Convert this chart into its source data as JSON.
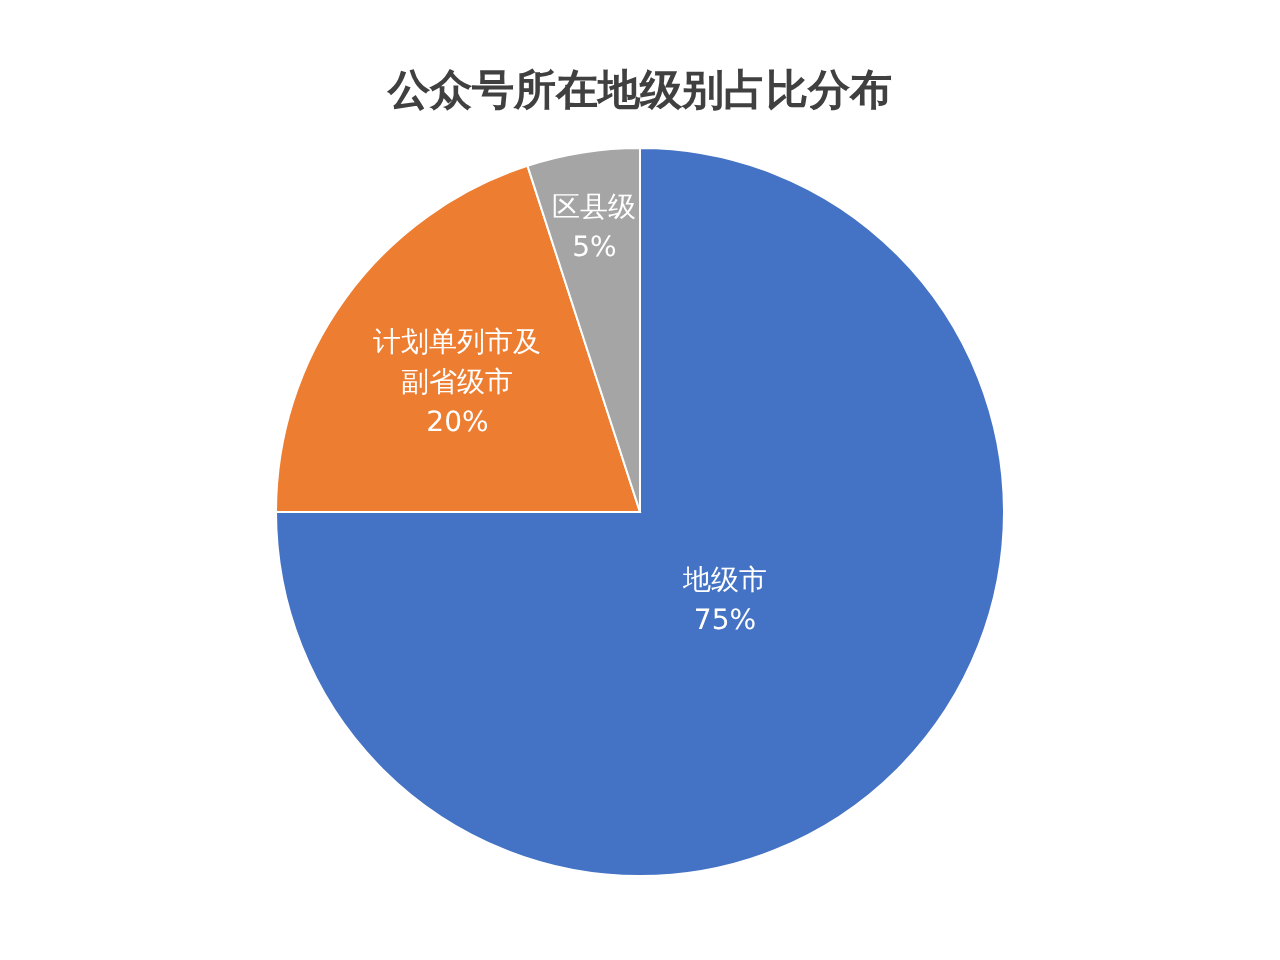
{
  "chart_data": {
    "type": "pie",
    "title": "公众号所在地级别占比分布",
    "categories": [
      "地级市",
      "计划单列市及副省级市",
      "区县级"
    ],
    "values": [
      75,
      20,
      5
    ],
    "colors": [
      "#4472c4",
      "#ed7d31",
      "#a5a5a5"
    ],
    "value_labels": [
      "75%",
      "20%",
      "5%"
    ]
  }
}
